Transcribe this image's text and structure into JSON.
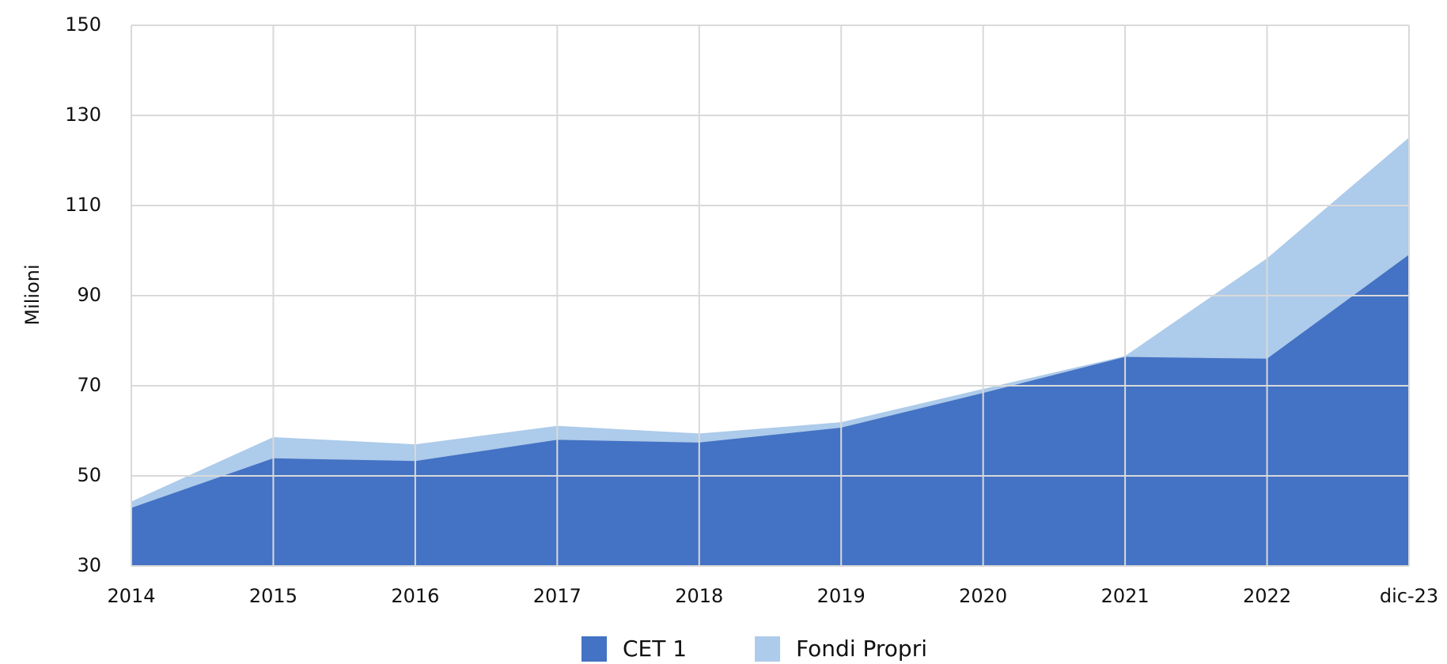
{
  "chart_data": {
    "type": "area",
    "y_label": "Milioni",
    "categories": [
      "2014",
      "2015",
      "2016",
      "2017",
      "2018",
      "2019",
      "2020",
      "2021",
      "2022",
      "dic-23"
    ],
    "series": [
      {
        "name": "CET 1",
        "color": "#4472c4",
        "values": [
          42.9,
          53.9,
          53.3,
          58.0,
          57.4,
          60.7,
          68.4,
          76.4,
          76.0,
          99.1
        ]
      },
      {
        "name": "Fondi Propri",
        "color": "#adcbea",
        "values": [
          44.3,
          58.6,
          57.0,
          61.1,
          59.4,
          61.9,
          69.3,
          76.6,
          98.3,
          125.1
        ]
      }
    ],
    "ylim": [
      30,
      150
    ],
    "yticks": [
      30,
      50,
      70,
      90,
      110,
      130,
      150
    ],
    "grid": true,
    "legend": "bottom"
  }
}
